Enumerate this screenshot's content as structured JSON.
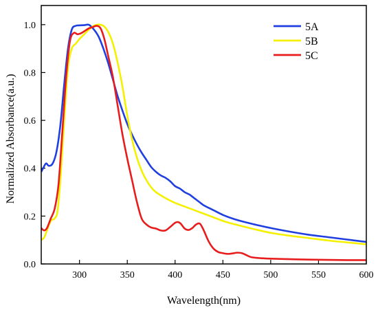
{
  "chart_data": {
    "type": "line",
    "title": "",
    "xlabel": "Wavelength(nm)",
    "ylabel": "Normalized Absorbance(a.u.)",
    "xlim": [
      260,
      600
    ],
    "ylim": [
      0.0,
      1.08
    ],
    "xticks": [
      300,
      350,
      400,
      450,
      500,
      550,
      600
    ],
    "xtick_labels": [
      "300",
      "350",
      "400",
      "450",
      "500",
      "550",
      "600"
    ],
    "yticks": [
      0.0,
      0.2,
      0.4,
      0.6,
      0.8,
      1.0
    ],
    "ytick_labels": [
      "0.0",
      "0.2",
      "0.4",
      "0.6",
      "0.8",
      "1.0"
    ],
    "grid": false,
    "legend_position": "top-right",
    "series": [
      {
        "name": "5A",
        "color": "#1f3fe0",
        "x": [
          260,
          262,
          265,
          268,
          272,
          276,
          280,
          284,
          288,
          292,
          296,
          300,
          305,
          310,
          315,
          320,
          325,
          330,
          335,
          340,
          345,
          350,
          355,
          360,
          365,
          370,
          375,
          380,
          385,
          390,
          395,
          400,
          405,
          410,
          415,
          420,
          425,
          430,
          440,
          450,
          460,
          470,
          480,
          500,
          520,
          540,
          560,
          580,
          600
        ],
        "y": [
          0.385,
          0.4,
          0.42,
          0.41,
          0.42,
          0.47,
          0.58,
          0.75,
          0.9,
          0.98,
          0.995,
          0.997,
          0.998,
          0.999,
          0.98,
          0.95,
          0.9,
          0.84,
          0.77,
          0.7,
          0.64,
          0.585,
          0.54,
          0.5,
          0.465,
          0.435,
          0.405,
          0.385,
          0.37,
          0.36,
          0.345,
          0.325,
          0.315,
          0.3,
          0.29,
          0.275,
          0.26,
          0.245,
          0.225,
          0.205,
          0.19,
          0.178,
          0.168,
          0.15,
          0.135,
          0.122,
          0.112,
          0.102,
          0.092
        ]
      },
      {
        "name": "5B",
        "color": "#f4f000",
        "x": [
          260,
          263,
          266,
          270,
          274,
          277,
          280,
          284,
          288,
          292,
          296,
          300,
          305,
          310,
          315,
          320,
          325,
          330,
          335,
          340,
          345,
          350,
          355,
          360,
          365,
          370,
          375,
          380,
          390,
          400,
          410,
          420,
          430,
          440,
          450,
          460,
          470,
          480,
          500,
          520,
          540,
          560,
          580,
          600
        ],
        "y": [
          0.1,
          0.11,
          0.14,
          0.18,
          0.19,
          0.22,
          0.35,
          0.6,
          0.82,
          0.9,
          0.92,
          0.94,
          0.96,
          0.98,
          0.995,
          1.0,
          0.995,
          0.97,
          0.92,
          0.84,
          0.74,
          0.62,
          0.52,
          0.445,
          0.39,
          0.35,
          0.32,
          0.3,
          0.275,
          0.255,
          0.24,
          0.225,
          0.21,
          0.195,
          0.18,
          0.168,
          0.158,
          0.148,
          0.13,
          0.118,
          0.108,
          0.098,
          0.09,
          0.082
        ]
      },
      {
        "name": "5C",
        "color": "#e81c1c",
        "x": [
          260,
          263,
          266,
          270,
          274,
          278,
          282,
          286,
          290,
          294,
          298,
          302,
          306,
          310,
          314,
          318,
          322,
          326,
          330,
          335,
          340,
          345,
          350,
          355,
          360,
          365,
          370,
          375,
          380,
          385,
          390,
          395,
          400,
          403,
          406,
          410,
          414,
          418,
          422,
          426,
          430,
          435,
          440,
          445,
          450,
          455,
          460,
          465,
          470,
          475,
          480,
          490,
          500,
          520,
          540,
          560,
          580,
          600
        ],
        "y": [
          0.15,
          0.14,
          0.15,
          0.19,
          0.23,
          0.33,
          0.55,
          0.78,
          0.93,
          0.965,
          0.96,
          0.965,
          0.975,
          0.985,
          0.99,
          0.995,
          0.985,
          0.94,
          0.87,
          0.78,
          0.66,
          0.54,
          0.44,
          0.35,
          0.26,
          0.19,
          0.165,
          0.152,
          0.148,
          0.14,
          0.14,
          0.155,
          0.172,
          0.175,
          0.168,
          0.148,
          0.142,
          0.15,
          0.165,
          0.168,
          0.14,
          0.095,
          0.065,
          0.05,
          0.045,
          0.042,
          0.044,
          0.047,
          0.045,
          0.036,
          0.028,
          0.024,
          0.022,
          0.02,
          0.018,
          0.017,
          0.016,
          0.016
        ]
      }
    ]
  }
}
